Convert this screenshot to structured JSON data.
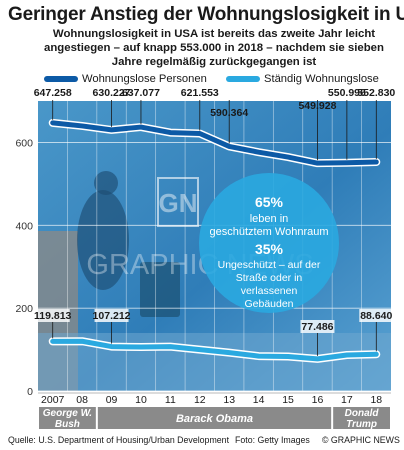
{
  "title": "Geringer Anstieg der Wohnungslosigkeit in US",
  "subtitle": "Wohnungslosigkeit in USA ist bereits das zweite Jahr leicht angestiegen – auf knapp 553.000 in 2018 – nachdem sie sieben Jahre regelmäßig zurückgegangen ist",
  "legend": [
    {
      "label": "Wohnungslose Personen",
      "color": "#0c5aa6"
    },
    {
      "label": "Ständig Wohnungslose",
      "color": "#2aa9e0"
    }
  ],
  "watermark": "GN GRAPHIC NEWS",
  "info_box": {
    "pct1": "65%",
    "text1": "leben in geschütztem Wohnraum",
    "pct2": "35%",
    "text2": "Ungeschützt – auf der Straße oder in verlassenen Gebäuden",
    "color": "#2aa9e0"
  },
  "presidents": [
    {
      "name": "George W. Bush",
      "from": "2007",
      "to": "08"
    },
    {
      "name": "Barack Obama",
      "from": "09",
      "to": "16"
    },
    {
      "name": "Donald Trump",
      "from": "17",
      "to": "18"
    }
  ],
  "footer": {
    "source": "Quelle: U.S. Department of Housing/Urban Development",
    "photo": "Foto: Getty Images",
    "credit": "© GRAPHIC NEWS"
  },
  "chart_data": {
    "type": "line",
    "x": [
      "2007",
      "08",
      "09",
      "10",
      "11",
      "12",
      "13",
      "14",
      "15",
      "16",
      "17",
      "18"
    ],
    "ylim": [
      0,
      700
    ],
    "yticks": [
      0,
      200,
      400,
      600
    ],
    "series": [
      {
        "name": "Wohnungslose Personen",
        "color": "#0c5aa6",
        "values": [
          647258,
          639784,
          630227,
          637077,
          623788,
          621553,
          590364,
          576450,
          564708,
          549928,
          550996,
          552830
        ],
        "labels": [
          "647.258",
          "",
          "630.227",
          "637.077",
          "",
          "621.553",
          "590.364",
          "",
          "",
          "549.928",
          "550.996",
          "552.830"
        ]
      },
      {
        "name": "Ständig Wohnungslose",
        "color": "#2aa9e0",
        "values": [
          119813,
          120115,
          107212,
          106062,
          107148,
          99894,
          92593,
          84291,
          83170,
          77486,
          86962,
          88640
        ],
        "labels": [
          "119.813",
          "",
          "107.212",
          "",
          "",
          "",
          "",
          "",
          "",
          "77.486",
          "",
          "88.640"
        ]
      }
    ]
  }
}
